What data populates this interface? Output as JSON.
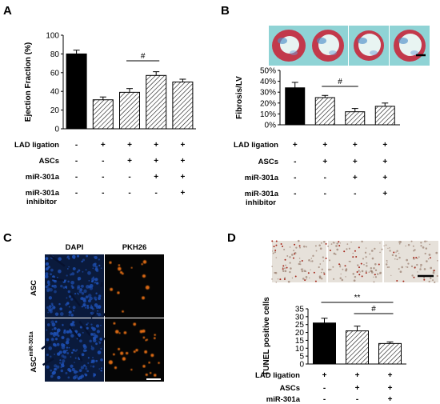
{
  "panels": {
    "A": "A",
    "B": "B",
    "C": "C",
    "D": "D"
  },
  "chart_data": [
    {
      "panel": "A",
      "type": "bar",
      "ylabel": "Ejection Fraction (%)",
      "ylim": [
        0,
        100
      ],
      "yticks": [
        "0",
        "20",
        "40",
        "60",
        "80",
        "100"
      ],
      "values": [
        80,
        31,
        39,
        57,
        50
      ],
      "errors": [
        4,
        3,
        4,
        4,
        3
      ],
      "fills": [
        "solid",
        "hatched",
        "hatched",
        "hatched",
        "hatched"
      ],
      "annotations": [
        {
          "text": "#",
          "from": 2,
          "to": 3
        }
      ],
      "rows": [
        {
          "label": "LAD ligation",
          "marks": [
            "-",
            "+",
            "+",
            "+",
            "+"
          ]
        },
        {
          "label": "ASCs",
          "marks": [
            "-",
            "-",
            "+",
            "+",
            "+"
          ]
        },
        {
          "label": "miR-301a",
          "marks": [
            "-",
            "-",
            "-",
            "+",
            "+"
          ]
        },
        {
          "label": "miR-301a inhibitor",
          "marks": [
            "-",
            "-",
            "-",
            "-",
            "+"
          ]
        }
      ]
    },
    {
      "panel": "B",
      "type": "bar",
      "ylabel": "Fibrosis/LV",
      "ylim": [
        0,
        50
      ],
      "yticks": [
        "0%",
        "10%",
        "20%",
        "30%",
        "40%",
        "50%"
      ],
      "values": [
        34,
        25,
        12,
        17
      ],
      "errors": [
        5,
        2,
        3,
        3
      ],
      "fills": [
        "solid",
        "hatched",
        "hatched",
        "hatched"
      ],
      "annotations": [
        {
          "text": "#",
          "from": 1,
          "to": 2
        }
      ],
      "rows": [
        {
          "label": "LAD ligation",
          "marks": [
            "+",
            "+",
            "+",
            "+"
          ]
        },
        {
          "label": "ASCs",
          "marks": [
            "-",
            "+",
            "+",
            "+"
          ]
        },
        {
          "label": "miR-301a",
          "marks": [
            "-",
            "-",
            "+",
            "+"
          ]
        },
        {
          "label": "miR-301a inhibitor",
          "marks": [
            "-",
            "-",
            "-",
            "+"
          ]
        }
      ]
    },
    {
      "panel": "D",
      "type": "bar",
      "ylabel": "TUNEL positive cells",
      "ylim": [
        0,
        35
      ],
      "yticks": [
        "0",
        "5",
        "10",
        "15",
        "20",
        "25",
        "30",
        "35"
      ],
      "values": [
        26,
        21,
        13
      ],
      "errors": [
        3,
        3,
        1
      ],
      "fills": [
        "solid",
        "hatched",
        "hatched"
      ],
      "annotations": [
        {
          "text": "**",
          "from": 0,
          "to": 2
        },
        {
          "text": "#",
          "from": 1,
          "to": 2
        }
      ],
      "rows": [
        {
          "label": "LAD ligation",
          "marks": [
            "+",
            "+",
            "+"
          ]
        },
        {
          "label": "ASCs",
          "marks": [
            "-",
            "+",
            "+"
          ]
        },
        {
          "label": "miR-301a",
          "marks": [
            "-",
            "-",
            "+"
          ]
        }
      ]
    }
  ],
  "panelC": {
    "col_labels": [
      "DAPI",
      "PKH26"
    ],
    "row_labels": [
      "ASC",
      "ASC"
    ],
    "row2_sup": "miR-301a"
  },
  "colors": {
    "masson_bg": "#8fd3d5",
    "masson_red": "#c8283c",
    "dapi": "#1e50b4",
    "pkh": "#ff7a14"
  }
}
